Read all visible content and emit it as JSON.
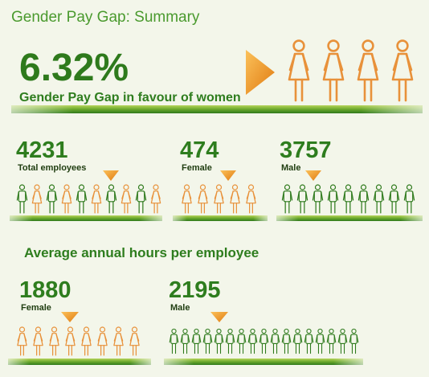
{
  "title": "Gender Pay Gap: Summary",
  "headline": {
    "value": "6.32%",
    "label": "Gender Pay Gap in favour of women"
  },
  "employees": [
    {
      "value": 4231,
      "label": "Total employees"
    },
    {
      "value": 474,
      "label": "Female"
    },
    {
      "value": 3757,
      "label": "Male"
    }
  ],
  "hours": {
    "title": "Average annual hours per employee",
    "items": [
      {
        "value": 1880,
        "label": "Female"
      },
      {
        "value": 2195,
        "label": "Male"
      }
    ]
  }
}
